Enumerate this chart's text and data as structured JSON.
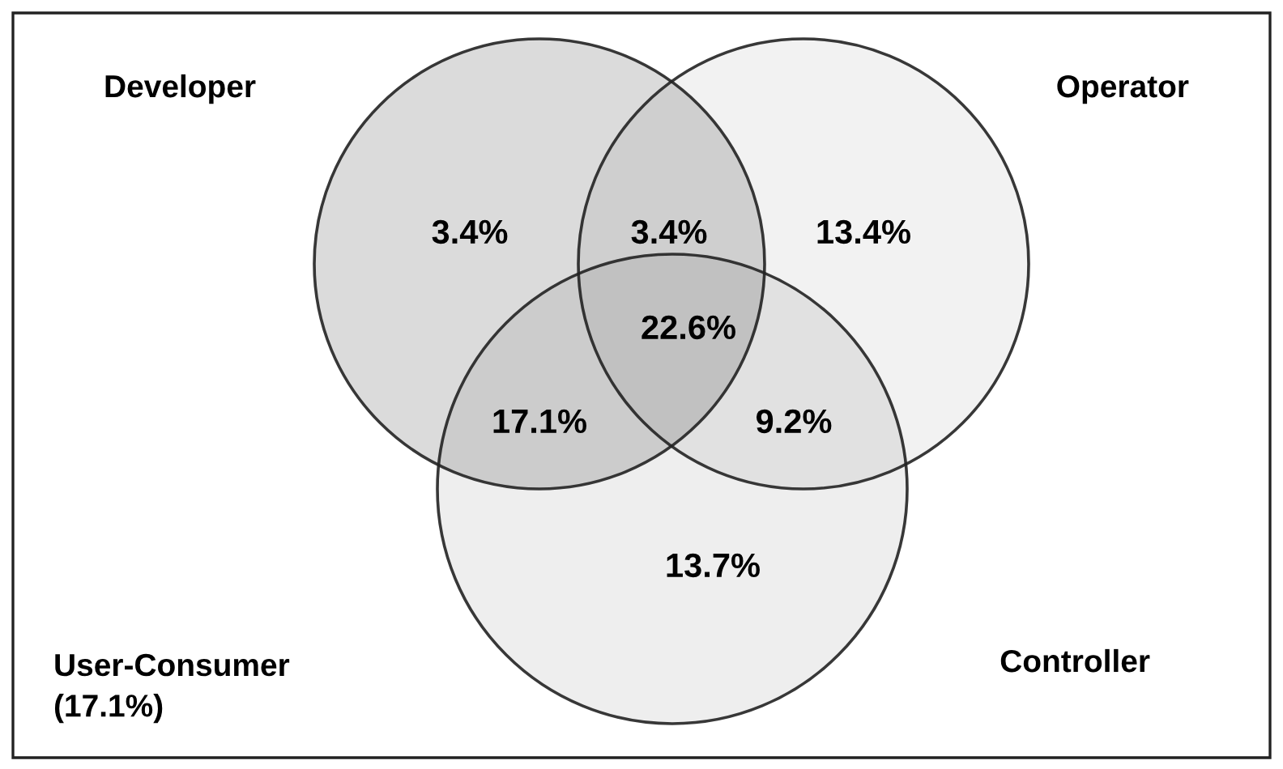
{
  "chart_data": {
    "type": "other",
    "categories": [
      null,
      null,
      null,
      null,
      null,
      null,
      null
    ],
    "values": [
      3.4,
      3.4,
      13.4,
      22.6,
      17.1,
      9.2,
      13.7
    ],
    "value_labels": [
      "3.4%",
      "3.4%",
      "13.4%",
      "22.6%",
      "17.1%",
      "9.2%",
      "13.7%"
    ],
    "annotations": [
      "Developer",
      "Operator",
      "User-Consumer\n(17.1%)",
      "Controller"
    ]
  }
}
